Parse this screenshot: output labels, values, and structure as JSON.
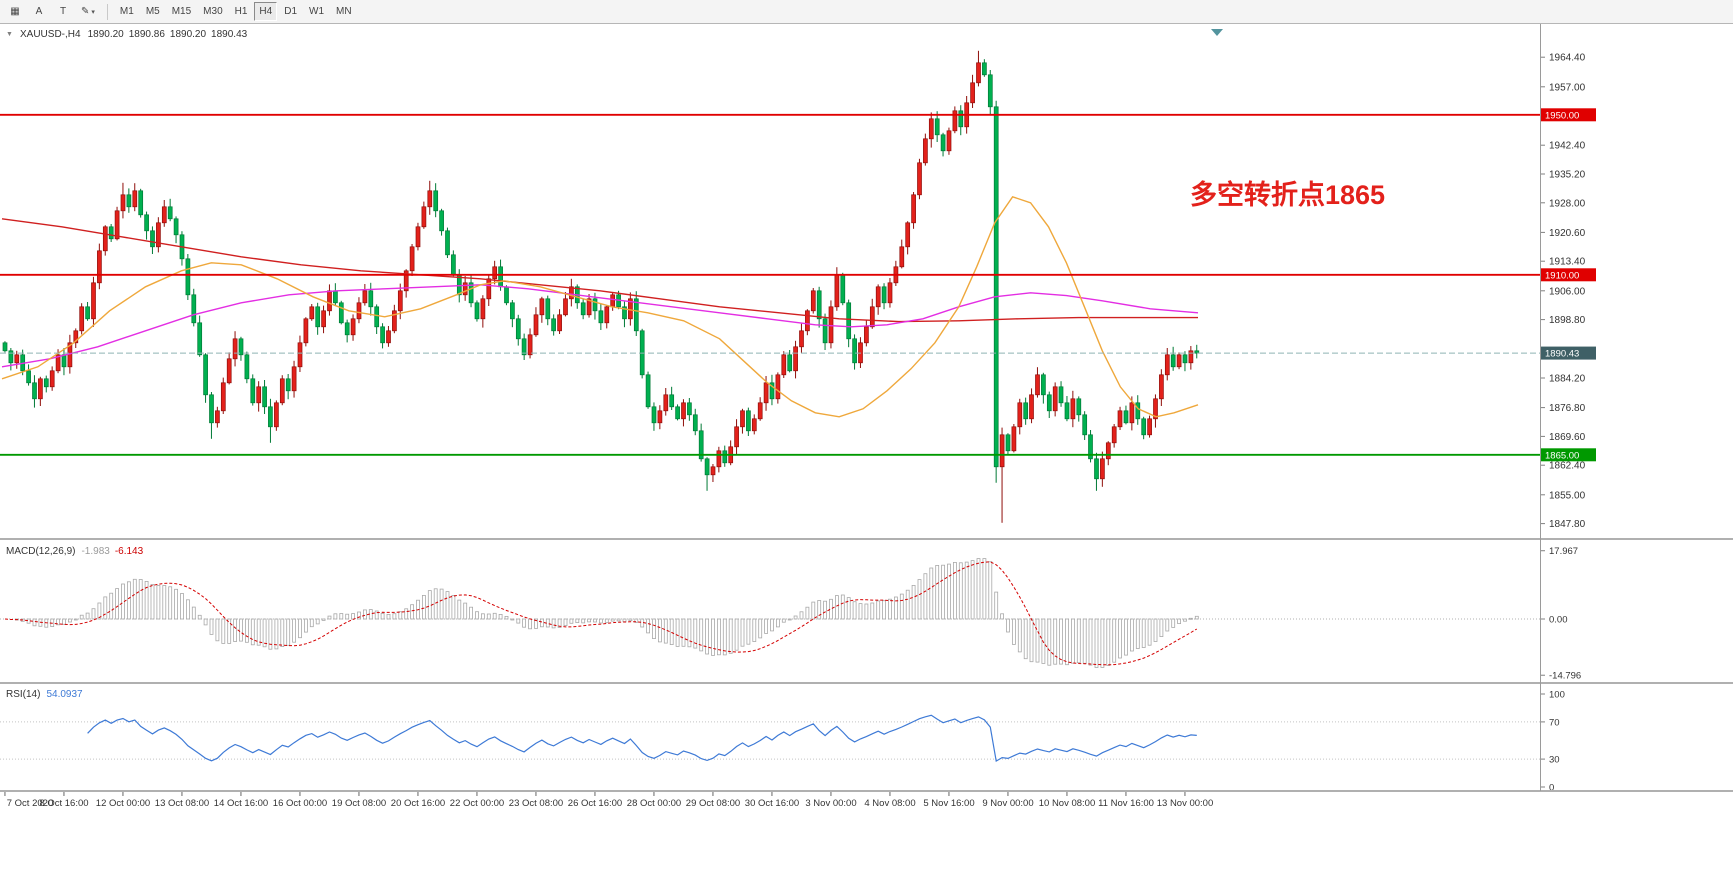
{
  "toolbar": {
    "tools": [
      {
        "name": "symbol-grid",
        "glyph": "▦"
      },
      {
        "name": "label-a",
        "glyph": "A"
      },
      {
        "name": "label-t",
        "glyph": "T"
      },
      {
        "name": "draw-tools",
        "glyph": "✎",
        "caret": "▾"
      }
    ],
    "timeframes": [
      "M1",
      "M5",
      "M15",
      "M30",
      "H1",
      "H4",
      "D1",
      "W1",
      "MN"
    ],
    "selected_timeframe": "H4"
  },
  "chart": {
    "header": {
      "dropdown_glyph": "▼",
      "symbol_title": "XAUUSD-,H4",
      "open": "1890.20",
      "high": "1890.86",
      "low": "1890.20",
      "close": "1890.43"
    },
    "annotation": {
      "text": "多空转折点1865",
      "color": "#e3211b"
    },
    "price_axis": {
      "ticks": [
        "1964.40",
        "1957.00",
        "1942.40",
        "1935.20",
        "1928.00",
        "1920.60",
        "1913.40",
        "1906.00",
        "1898.80",
        "1884.20",
        "1876.80",
        "1869.60",
        "1862.40",
        "1855.00",
        "1847.80"
      ],
      "level_labels": [
        {
          "text": "1950.00",
          "color": "#e00000"
        },
        {
          "text": "1910.00",
          "color": "#e00000"
        },
        {
          "text": "1865.00",
          "color": "#009900"
        }
      ],
      "bid_label": {
        "text": "1890.43",
        "color": "#3f6066"
      }
    },
    "time_axis": [
      "7 Oct 2020",
      "8 Oct 16:00",
      "12 Oct 00:00",
      "13 Oct 08:00",
      "14 Oct 16:00",
      "16 Oct 00:00",
      "19 Oct 08:00",
      "20 Oct 16:00",
      "22 Oct 00:00",
      "23 Oct 08:00",
      "26 Oct 16:00",
      "28 Oct 00:00",
      "29 Oct 08:00",
      "30 Oct 16:00",
      "3 Nov 00:00",
      "4 Nov 08:00",
      "5 Nov 16:00",
      "9 Nov 00:00",
      "10 Nov 08:00",
      "11 Nov 16:00",
      "13 Nov 00:00"
    ],
    "indicator_labels": {
      "macd": {
        "name": "MACD(12,26,9)",
        "main_value": "-1.983",
        "signal_value": "-6.143",
        "axis": [
          "17.967",
          "0.00",
          "-14.796"
        ]
      },
      "rsi": {
        "name": "RSI(14)",
        "value": "54.0937",
        "axis": [
          "100",
          "70",
          "30",
          "0"
        ]
      }
    }
  },
  "chart_data": {
    "type": "candlestick",
    "symbol": "XAUUSD-",
    "timeframe": "H4",
    "up_color": "#e3211b",
    "down_color": "#00b050",
    "bid_price": 1890.43,
    "price_range": {
      "top": 1971.7,
      "bottom": 1843.0
    },
    "levels": [
      {
        "price": 1950.0,
        "color": "#e00000"
      },
      {
        "price": 1910.0,
        "color": "#e00000"
      },
      {
        "price": 1865.0,
        "color": "#009900"
      }
    ],
    "first_open": 1893,
    "closes": [
      1891,
      1888,
      1890,
      1886,
      1883,
      1879,
      1884,
      1882,
      1886,
      1890,
      1887,
      1893,
      1896,
      1902,
      1899,
      1908,
      1916,
      1922,
      1919,
      1926,
      1930,
      1927,
      1931,
      1925,
      1921,
      1917,
      1923,
      1927,
      1924,
      1920,
      1914,
      1905,
      1898,
      1890,
      1880,
      1873,
      1876,
      1883,
      1889,
      1894,
      1890,
      1884,
      1878,
      1882,
      1877,
      1872,
      1878,
      1884,
      1881,
      1887,
      1893,
      1899,
      1902,
      1897,
      1901,
      1906,
      1903,
      1898,
      1895,
      1899,
      1903,
      1906,
      1902,
      1897,
      1893,
      1896,
      1901,
      1906,
      1911,
      1917,
      1922,
      1927,
      1931,
      1926,
      1921,
      1915,
      1910,
      1905,
      1908,
      1903,
      1899,
      1904,
      1909,
      1912,
      1907,
      1903,
      1899,
      1894,
      1890,
      1895,
      1900,
      1904,
      1899,
      1896,
      1900,
      1904,
      1907,
      1903,
      1900,
      1904,
      1901,
      1898,
      1902,
      1905,
      1902,
      1899,
      1904,
      1896,
      1885,
      1877,
      1873,
      1876,
      1880,
      1877,
      1874,
      1878,
      1875,
      1871,
      1864,
      1860,
      1862,
      1866,
      1863,
      1867,
      1872,
      1876,
      1871,
      1874,
      1878,
      1883,
      1879,
      1885,
      1890,
      1886,
      1892,
      1896,
      1901,
      1906,
      1899,
      1893,
      1902,
      1910,
      1903,
      1894,
      1888,
      1893,
      1897,
      1902,
      1907,
      1903,
      1908,
      1912,
      1917,
      1923,
      1930,
      1938,
      1944,
      1949,
      1945,
      1941,
      1946,
      1951,
      1947,
      1953,
      1958,
      1963,
      1960,
      1952,
      1862,
      1870,
      1866,
      1872,
      1878,
      1874,
      1880,
      1885,
      1880,
      1876,
      1882,
      1878,
      1874,
      1879,
      1875,
      1870,
      1864,
      1859,
      1864,
      1868,
      1872,
      1876,
      1873,
      1878,
      1874,
      1870,
      1874,
      1879,
      1885,
      1890,
      1887,
      1890,
      1888,
      1891,
      1890.4
    ],
    "wick_overrides": {
      "20": [
        1933,
        null
      ],
      "35": [
        null,
        1869
      ],
      "45": [
        null,
        1868
      ],
      "72": [
        1933.5,
        null
      ],
      "119": [
        null,
        1856
      ],
      "165": [
        1966,
        null
      ],
      "168": [
        null,
        1858
      ],
      "169": [
        null,
        1848
      ],
      "185": [
        null,
        1856
      ]
    },
    "ma_lines": [
      {
        "name": "ma-slow-red",
        "color": "#d02020",
        "points": [
          [
            0,
            1924
          ],
          [
            0.05,
            1922
          ],
          [
            0.1,
            1919.5
          ],
          [
            0.15,
            1917
          ],
          [
            0.2,
            1914.5
          ],
          [
            0.25,
            1912.5
          ],
          [
            0.3,
            1911
          ],
          [
            0.35,
            1910
          ],
          [
            0.4,
            1909
          ],
          [
            0.45,
            1907.5
          ],
          [
            0.5,
            1906
          ],
          [
            0.55,
            1904
          ],
          [
            0.6,
            1902
          ],
          [
            0.65,
            1900.5
          ],
          [
            0.7,
            1899
          ],
          [
            0.75,
            1898.3
          ],
          [
            0.8,
            1898.5
          ],
          [
            0.85,
            1899
          ],
          [
            0.9,
            1899.3
          ],
          [
            0.95,
            1899.3
          ],
          [
            1,
            1899.3
          ]
        ]
      },
      {
        "name": "ma-mid-magenta",
        "color": "#e32ee3",
        "points": [
          [
            0,
            1887
          ],
          [
            0.04,
            1889
          ],
          [
            0.08,
            1892
          ],
          [
            0.12,
            1896
          ],
          [
            0.16,
            1900
          ],
          [
            0.2,
            1903
          ],
          [
            0.24,
            1905
          ],
          [
            0.28,
            1906
          ],
          [
            0.32,
            1906.5
          ],
          [
            0.36,
            1907
          ],
          [
            0.4,
            1907.5
          ],
          [
            0.44,
            1906.5
          ],
          [
            0.48,
            1905
          ],
          [
            0.52,
            1903.5
          ],
          [
            0.56,
            1902
          ],
          [
            0.6,
            1900.5
          ],
          [
            0.64,
            1899
          ],
          [
            0.68,
            1897.5
          ],
          [
            0.71,
            1897
          ],
          [
            0.74,
            1897.5
          ],
          [
            0.77,
            1899
          ],
          [
            0.8,
            1902
          ],
          [
            0.83,
            1904.5
          ],
          [
            0.86,
            1905.5
          ],
          [
            0.89,
            1904.8
          ],
          [
            0.92,
            1903.5
          ],
          [
            0.96,
            1901.5
          ],
          [
            1,
            1900.5
          ]
        ]
      },
      {
        "name": "ma-fast-orange",
        "color": "#efa83c",
        "points": [
          [
            0,
            1884
          ],
          [
            0.03,
            1887
          ],
          [
            0.06,
            1893
          ],
          [
            0.09,
            1901
          ],
          [
            0.12,
            1907
          ],
          [
            0.15,
            1911
          ],
          [
            0.175,
            1913
          ],
          [
            0.2,
            1912.5
          ],
          [
            0.23,
            1909
          ],
          [
            0.26,
            1904.5
          ],
          [
            0.29,
            1901
          ],
          [
            0.32,
            1899.5
          ],
          [
            0.35,
            1901.5
          ],
          [
            0.38,
            1905
          ],
          [
            0.4,
            1907.5
          ],
          [
            0.42,
            1908.5
          ],
          [
            0.45,
            1907
          ],
          [
            0.48,
            1904.5
          ],
          [
            0.51,
            1902
          ],
          [
            0.54,
            1900.5
          ],
          [
            0.57,
            1898.5
          ],
          [
            0.6,
            1894
          ],
          [
            0.62,
            1888.5
          ],
          [
            0.64,
            1883
          ],
          [
            0.66,
            1878.5
          ],
          [
            0.68,
            1875.5
          ],
          [
            0.7,
            1874.5
          ],
          [
            0.72,
            1876.5
          ],
          [
            0.74,
            1881
          ],
          [
            0.76,
            1886.5
          ],
          [
            0.78,
            1893
          ],
          [
            0.8,
            1902
          ],
          [
            0.815,
            1912
          ],
          [
            0.83,
            1923
          ],
          [
            0.845,
            1929.5
          ],
          [
            0.86,
            1928
          ],
          [
            0.875,
            1922
          ],
          [
            0.89,
            1913
          ],
          [
            0.905,
            1902
          ],
          [
            0.92,
            1891
          ],
          [
            0.935,
            1882
          ],
          [
            0.95,
            1876.5
          ],
          [
            0.965,
            1874.5
          ],
          [
            0.98,
            1875.5
          ],
          [
            1,
            1877.5
          ]
        ]
      }
    ],
    "macd": {
      "fast": 12,
      "slow": 26,
      "signal": 9,
      "axis_max": 17.967,
      "axis_min": -14.796
    },
    "rsi": {
      "period": 14,
      "levels": [
        70,
        30
      ]
    }
  }
}
